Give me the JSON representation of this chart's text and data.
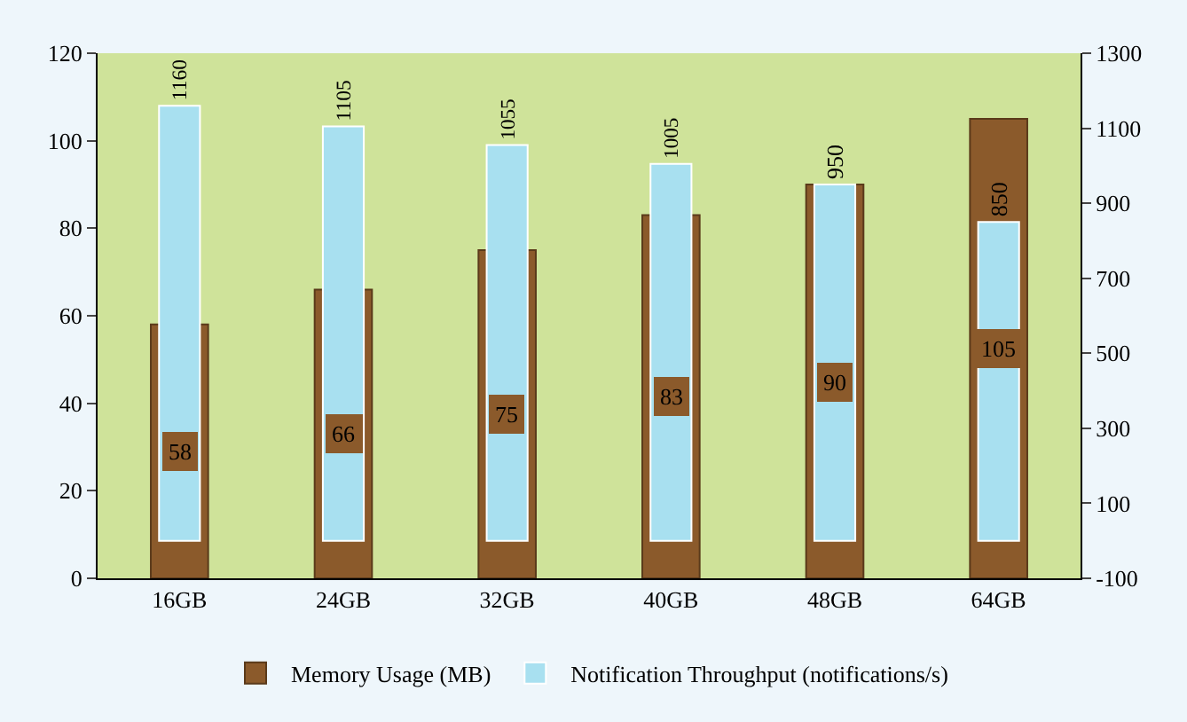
{
  "chart_data": {
    "type": "bar",
    "categories": [
      "16GB",
      "24GB",
      "32GB",
      "40GB",
      "48GB",
      "64GB"
    ],
    "series": [
      {
        "name": "Memory Usage (MB)",
        "color": "#8b5a2b",
        "values": [
          58,
          66,
          75,
          83,
          90,
          105
        ]
      },
      {
        "name": "Notification Throughput (notifications/s)",
        "color": "#a8e0f0",
        "axis": "y2",
        "values": [
          1160,
          1105,
          1055,
          1005,
          950,
          850
        ]
      }
    ],
    "ylim": [
      0,
      120
    ],
    "yticks": [
      0,
      20,
      40,
      60,
      80,
      100,
      120
    ],
    "y2lim": [
      -100,
      1300
    ],
    "y2ticks": [
      -100,
      100,
      300,
      500,
      700,
      900,
      1100,
      1300
    ],
    "data_labels": true,
    "grid": false,
    "legend": "bottom"
  }
}
